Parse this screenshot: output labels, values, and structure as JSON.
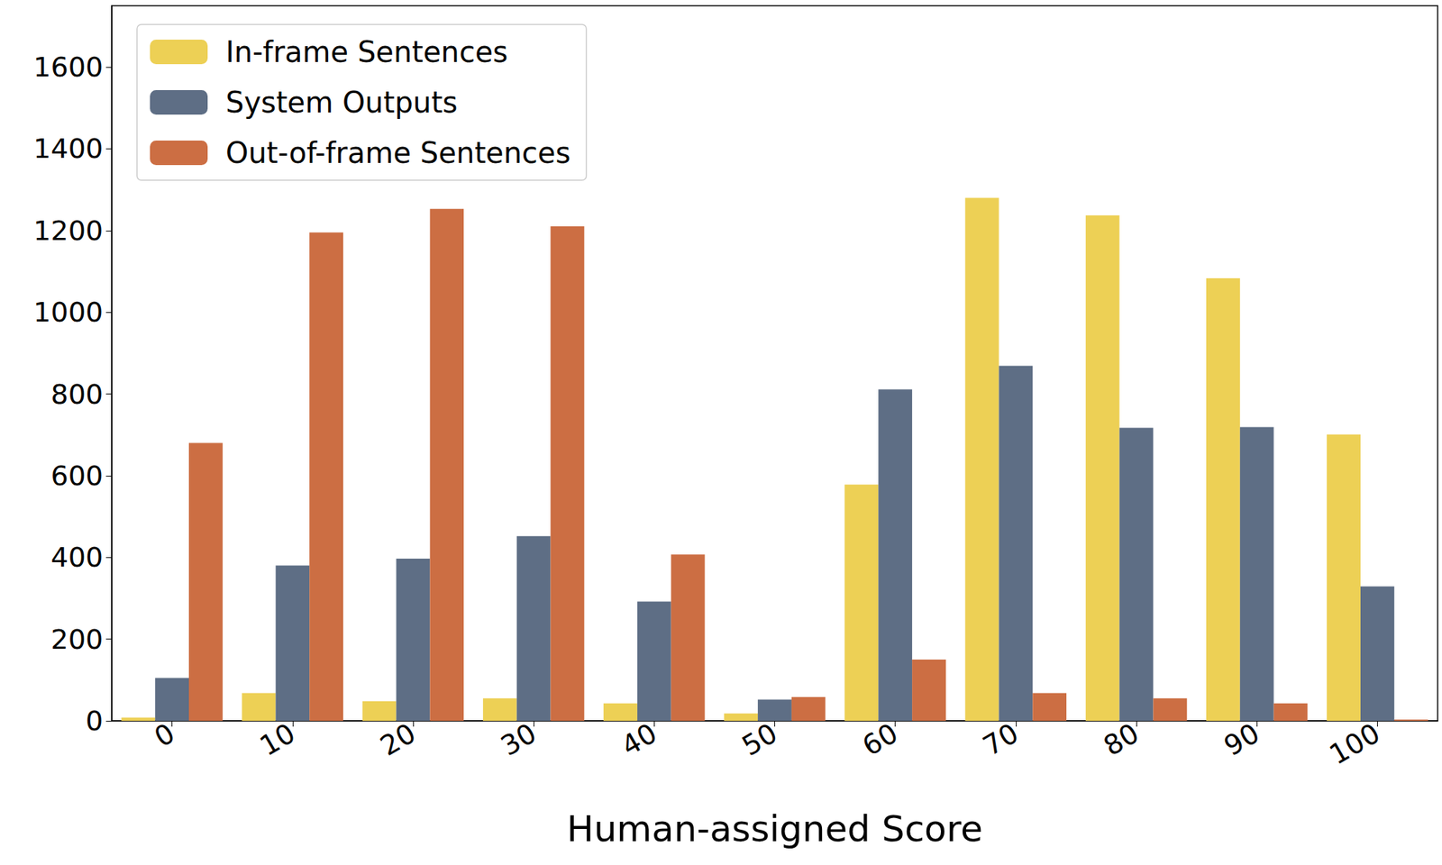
{
  "chart_data": {
    "type": "bar",
    "x_label": "Human-assigned Score",
    "categories": [
      "0",
      "10",
      "20",
      "30",
      "40",
      "50",
      "60",
      "70",
      "80",
      "90",
      "100"
    ],
    "series": [
      {
        "name": "In-frame Sentences",
        "color": "#edd055",
        "values": [
          8,
          68,
          48,
          55,
          43,
          18,
          578,
          1280,
          1237,
          1083,
          701
        ]
      },
      {
        "name": "System Outputs",
        "color": "#5e6e85",
        "values": [
          105,
          380,
          397,
          452,
          292,
          52,
          811,
          869,
          717,
          719,
          329
        ]
      },
      {
        "name": "Out-of-frame Sentences",
        "color": "#cc6e43",
        "values": [
          680,
          1195,
          1253,
          1210,
          407,
          58,
          150,
          68,
          55,
          43,
          3
        ]
      }
    ],
    "ylim": [
      0,
      1750
    ],
    "yticks": [
      0,
      200,
      400,
      600,
      800,
      1000,
      1200,
      1400,
      1600
    ],
    "grid": false,
    "legend": "upper left"
  }
}
